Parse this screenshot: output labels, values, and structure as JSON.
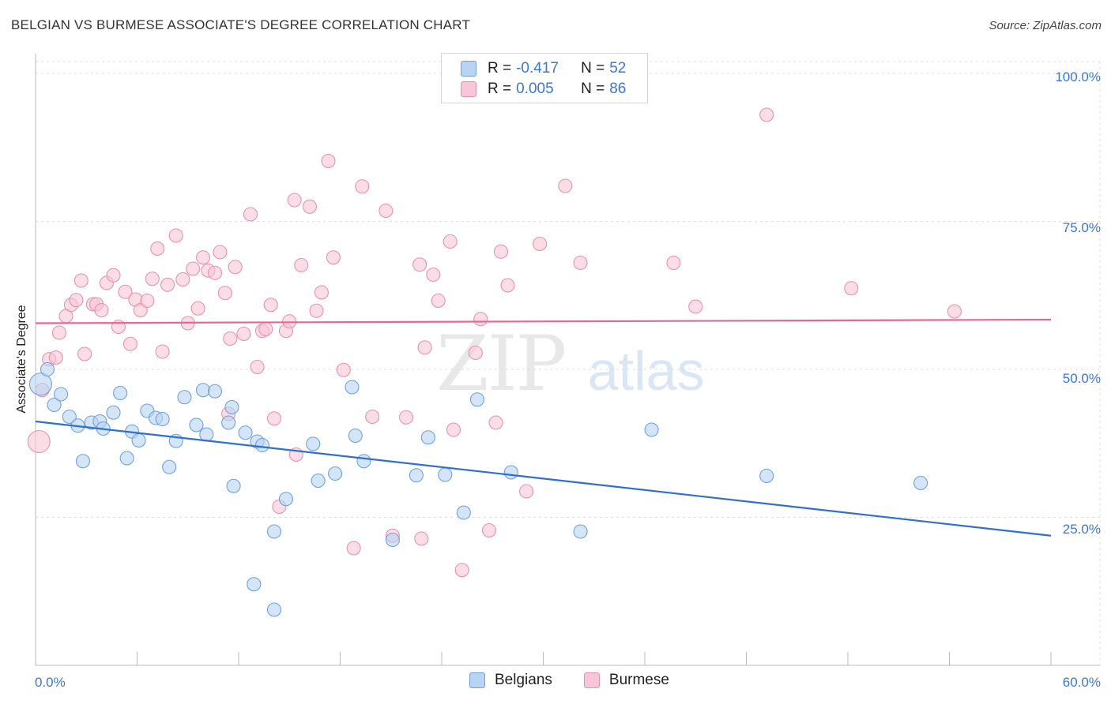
{
  "header": {
    "title": "BELGIAN VS BURMESE ASSOCIATE'S DEGREE CORRELATION CHART",
    "source": "Source: ZipAtlas.com"
  },
  "legend": {
    "belgians": {
      "r_label": "R =",
      "r_value": "-0.417",
      "n_label": "N =",
      "n_value": "52"
    },
    "burmese": {
      "r_label": "R =",
      "r_value": "0.005",
      "n_label": "N =",
      "n_value": "86"
    }
  },
  "bottom_legend": {
    "belgians": "Belgians",
    "burmese": "Burmese"
  },
  "watermark": {
    "zip": "ZIP",
    "atlas": "atlas"
  },
  "colors": {
    "belgians_fill": "#b8d3f3",
    "belgians_stroke": "#6fa0dc",
    "belgians_line": "#2f6fd0",
    "burmese_fill": "#f8c6d6",
    "burmese_stroke": "#e592b0",
    "burmese_line": "#e06a92",
    "axis_text": "#3a78d6"
  },
  "chart_data": {
    "type": "scatter",
    "title": "BELGIAN VS BURMESE ASSOCIATE'S DEGREE CORRELATION CHART",
    "xlabel": "",
    "ylabel": "Associate's Degree",
    "xlim": [
      0,
      60
    ],
    "ylim": [
      0,
      102
    ],
    "x_tick_labels": [
      "0.0%",
      "60.0%"
    ],
    "y_ticks": [
      25,
      50,
      75,
      100
    ],
    "y_tick_labels": [
      "25.0%",
      "50.0%",
      "75.0%",
      "100.0%"
    ],
    "grid": true,
    "legend_position": "top-center",
    "series": [
      {
        "name": "Belgians",
        "r": -0.417,
        "n": 52,
        "trend": {
          "x": [
            0,
            60
          ],
          "y": [
            41.2,
            21.9
          ]
        },
        "points": [
          [
            0.3,
            47.5
          ],
          [
            0.7,
            50
          ],
          [
            1.1,
            44
          ],
          [
            1.5,
            45.8
          ],
          [
            2,
            42
          ],
          [
            2.5,
            40.5
          ],
          [
            2.8,
            34.5
          ],
          [
            3.3,
            41
          ],
          [
            3.8,
            41.2
          ],
          [
            4,
            40
          ],
          [
            4.6,
            42.7
          ],
          [
            5,
            46
          ],
          [
            5.4,
            35
          ],
          [
            5.7,
            39.5
          ],
          [
            6.1,
            38
          ],
          [
            6.6,
            43
          ],
          [
            7.1,
            41.8
          ],
          [
            7.5,
            41.6
          ],
          [
            7.9,
            33.5
          ],
          [
            8.3,
            37.9
          ],
          [
            8.8,
            45.3
          ],
          [
            9.5,
            40.6
          ],
          [
            10.1,
            39
          ],
          [
            9.9,
            46.5
          ],
          [
            10.6,
            46.3
          ],
          [
            11.4,
            41
          ],
          [
            11.6,
            43.6
          ],
          [
            11.7,
            30.3
          ],
          [
            12.4,
            39.3
          ],
          [
            12.9,
            13.7
          ],
          [
            13.1,
            37.8
          ],
          [
            13.4,
            37.2
          ],
          [
            14.1,
            22.6
          ],
          [
            14.1,
            9.4
          ],
          [
            14.8,
            28.1
          ],
          [
            16.4,
            37.4
          ],
          [
            16.7,
            31.2
          ],
          [
            17.7,
            32.4
          ],
          [
            18.7,
            47
          ],
          [
            18.9,
            38.8
          ],
          [
            19.4,
            34.5
          ],
          [
            21.1,
            21.2
          ],
          [
            22.5,
            32.1
          ],
          [
            23.2,
            38.5
          ],
          [
            24.2,
            32.2
          ],
          [
            25.3,
            25.8
          ],
          [
            26.1,
            44.9
          ],
          [
            28.1,
            32.6
          ],
          [
            32.2,
            22.6
          ],
          [
            36.4,
            39.8
          ],
          [
            43.2,
            32
          ],
          [
            52.3,
            30.8
          ]
        ]
      },
      {
        "name": "Burmese",
        "r": 0.005,
        "n": 86,
        "trend": {
          "x": [
            0,
            60
          ],
          "y": [
            57.8,
            58.4
          ]
        },
        "points": [
          [
            0.2,
            37.8
          ],
          [
            0.4,
            46.5
          ],
          [
            0.8,
            51.7
          ],
          [
            1.2,
            52
          ],
          [
            1.4,
            56.2
          ],
          [
            1.8,
            59
          ],
          [
            2.1,
            60.9
          ],
          [
            2.4,
            61.7
          ],
          [
            2.7,
            65
          ],
          [
            2.9,
            52.6
          ],
          [
            3.4,
            61
          ],
          [
            3.6,
            61
          ],
          [
            3.9,
            60
          ],
          [
            4.2,
            64.6
          ],
          [
            4.6,
            65.9
          ],
          [
            4.9,
            57.2
          ],
          [
            5.3,
            63.1
          ],
          [
            5.6,
            54.3
          ],
          [
            5.9,
            61.8
          ],
          [
            6.2,
            60
          ],
          [
            6.6,
            61.6
          ],
          [
            6.9,
            65.3
          ],
          [
            7.2,
            70.4
          ],
          [
            7.5,
            53
          ],
          [
            7.8,
            64.3
          ],
          [
            8.3,
            72.6
          ],
          [
            8.7,
            65.2
          ],
          [
            9,
            57.8
          ],
          [
            9.3,
            67
          ],
          [
            9.6,
            60.3
          ],
          [
            9.9,
            68.9
          ],
          [
            10.2,
            66.7
          ],
          [
            10.6,
            66.3
          ],
          [
            10.9,
            69.8
          ],
          [
            11.2,
            62.9
          ],
          [
            11.5,
            55.2
          ],
          [
            11.8,
            67.3
          ],
          [
            11.4,
            42.5
          ],
          [
            12.3,
            56
          ],
          [
            12.7,
            76.2
          ],
          [
            13.1,
            50.4
          ],
          [
            13.4,
            56.5
          ],
          [
            13.6,
            56.8
          ],
          [
            13.9,
            60.9
          ],
          [
            14.1,
            41.7
          ],
          [
            14.4,
            26.8
          ],
          [
            14.8,
            56.5
          ],
          [
            15,
            58.1
          ],
          [
            15.3,
            78.6
          ],
          [
            15.4,
            35.6
          ],
          [
            15.7,
            67.6
          ],
          [
            16.2,
            77.5
          ],
          [
            16.6,
            59.9
          ],
          [
            16.9,
            63
          ],
          [
            17.3,
            85.2
          ],
          [
            17.6,
            68.9
          ],
          [
            18.2,
            49.9
          ],
          [
            18.8,
            19.8
          ],
          [
            19.3,
            80.9
          ],
          [
            19.9,
            42
          ],
          [
            20.7,
            76.8
          ],
          [
            21.1,
            21.9
          ],
          [
            21.9,
            41.9
          ],
          [
            22.7,
            67.7
          ],
          [
            22.8,
            21.4
          ],
          [
            23,
            53.7
          ],
          [
            23.5,
            66
          ],
          [
            23.8,
            61.6
          ],
          [
            24.5,
            71.6
          ],
          [
            24.7,
            39.8
          ],
          [
            25.2,
            16.1
          ],
          [
            26,
            52.8
          ],
          [
            26.3,
            58.5
          ],
          [
            26.8,
            22.8
          ],
          [
            27.2,
            41
          ],
          [
            27.5,
            69.9
          ],
          [
            27.9,
            64.2
          ],
          [
            29,
            29.4
          ],
          [
            29.8,
            71.2
          ],
          [
            31.3,
            81
          ],
          [
            32.2,
            68
          ],
          [
            37.7,
            68
          ],
          [
            39,
            60.6
          ],
          [
            43.2,
            93
          ],
          [
            48.2,
            63.7
          ],
          [
            54.3,
            59.8
          ]
        ]
      }
    ]
  }
}
